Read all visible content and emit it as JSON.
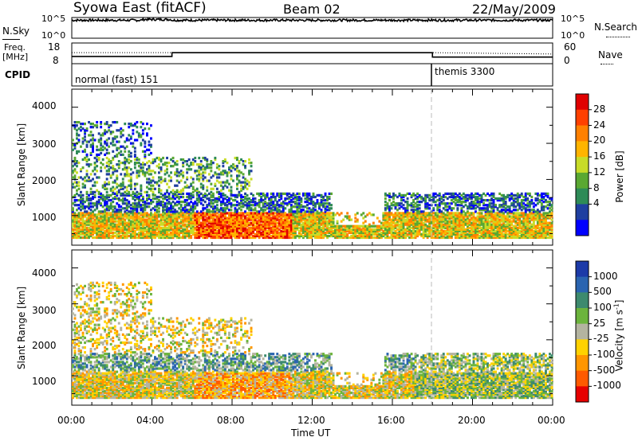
{
  "header": {
    "station": "Syowa East (fitACF)",
    "beam": "Beam 02",
    "date": "22/May/2009"
  },
  "top_panels": {
    "nsky_label": "N.Sky",
    "nsearch_label": "N.Search",
    "nsky_ticks": [
      "10^5",
      "10^0"
    ],
    "nsearch_ticks": [
      "10^5",
      "10^0"
    ],
    "freq_label_1": "Freq.",
    "freq_label_2": "[MHz]",
    "freq_ticks": [
      "18",
      "8"
    ],
    "nave_ticks": [
      "60",
      "0"
    ],
    "nave_label": "Nave",
    "cpid_label": "CPID",
    "cpid_modes": [
      {
        "name": "normal (fast) 151",
        "start_hour": 0
      },
      {
        "name": "themis 3300",
        "start_hour": 18
      }
    ]
  },
  "x_axis": {
    "label": "Time UT",
    "ticks": [
      "00:00",
      "04:00",
      "08:00",
      "12:00",
      "16:00",
      "20:00",
      "00:00"
    ],
    "range_hours": [
      0,
      24
    ]
  },
  "power_panel": {
    "ylabel": "Slant Range [km]",
    "yticks": [
      "4000",
      "3000",
      "2000",
      "1000"
    ],
    "colorbar_label": "Power [dB]",
    "colorbar_ticks": [
      "28",
      "24",
      "20",
      "16",
      "12",
      "8",
      "4"
    ],
    "colors": [
      "#0000ff",
      "#1f3fa0",
      "#2e8b57",
      "#5aa832",
      "#c8dc28",
      "#ffb400",
      "#ff8000",
      "#ff4000",
      "#e00000"
    ]
  },
  "velocity_panel": {
    "ylabel": "Slant Range [km]",
    "yticks": [
      "4000",
      "3000",
      "2000",
      "1000"
    ],
    "colorbar_label": "Velocity [m s",
    "colorbar_label_sup": "-1",
    "colorbar_label_end": "]",
    "colorbar_ticks": [
      "1000",
      "500",
      "100",
      "25",
      "-25",
      "-100",
      "-500",
      "-1000"
    ],
    "colors": [
      "#1c3aa8",
      "#2a64b0",
      "#3d8a6e",
      "#6cb43c",
      "#b4b4a0",
      "#ffd200",
      "#ff9600",
      "#ff5a00",
      "#e60000"
    ]
  },
  "chart_data": [
    {
      "type": "line",
      "title": "N.Sky / N.Search",
      "ylim_log10": [
        0,
        5
      ],
      "x_range_hours": [
        0,
        24
      ],
      "series": [
        {
          "name": "N.Sky",
          "values_log10": [
            4.5,
            4.5,
            4.5,
            4.5,
            4.5,
            4.5,
            4.5
          ]
        }
      ]
    },
    {
      "type": "line",
      "title": "Freq. / Nave",
      "freq_ylim": [
        8,
        18
      ],
      "nave_ylim": [
        0,
        60
      ],
      "series": [
        {
          "name": "Freq.",
          "x": [
            0,
            5,
            5,
            18,
            18,
            24
          ],
          "values": [
            11.5,
            11.5,
            13.3,
            13.3,
            11.2,
            11.2
          ]
        },
        {
          "name": "Nave",
          "x": [
            0,
            18,
            24
          ],
          "values": [
            32,
            32,
            28
          ]
        }
      ]
    },
    {
      "type": "heatmap",
      "title": "Power [dB]",
      "x_range_hours": [
        0,
        24
      ],
      "ylim_km": [
        180,
        4500
      ],
      "value_range": [
        0,
        30
      ]
    },
    {
      "type": "heatmap",
      "title": "Velocity [m s-1]",
      "x_range_hours": [
        0,
        24
      ],
      "ylim_km": [
        180,
        4500
      ],
      "value_range": [
        -1200,
        1200
      ]
    }
  ]
}
